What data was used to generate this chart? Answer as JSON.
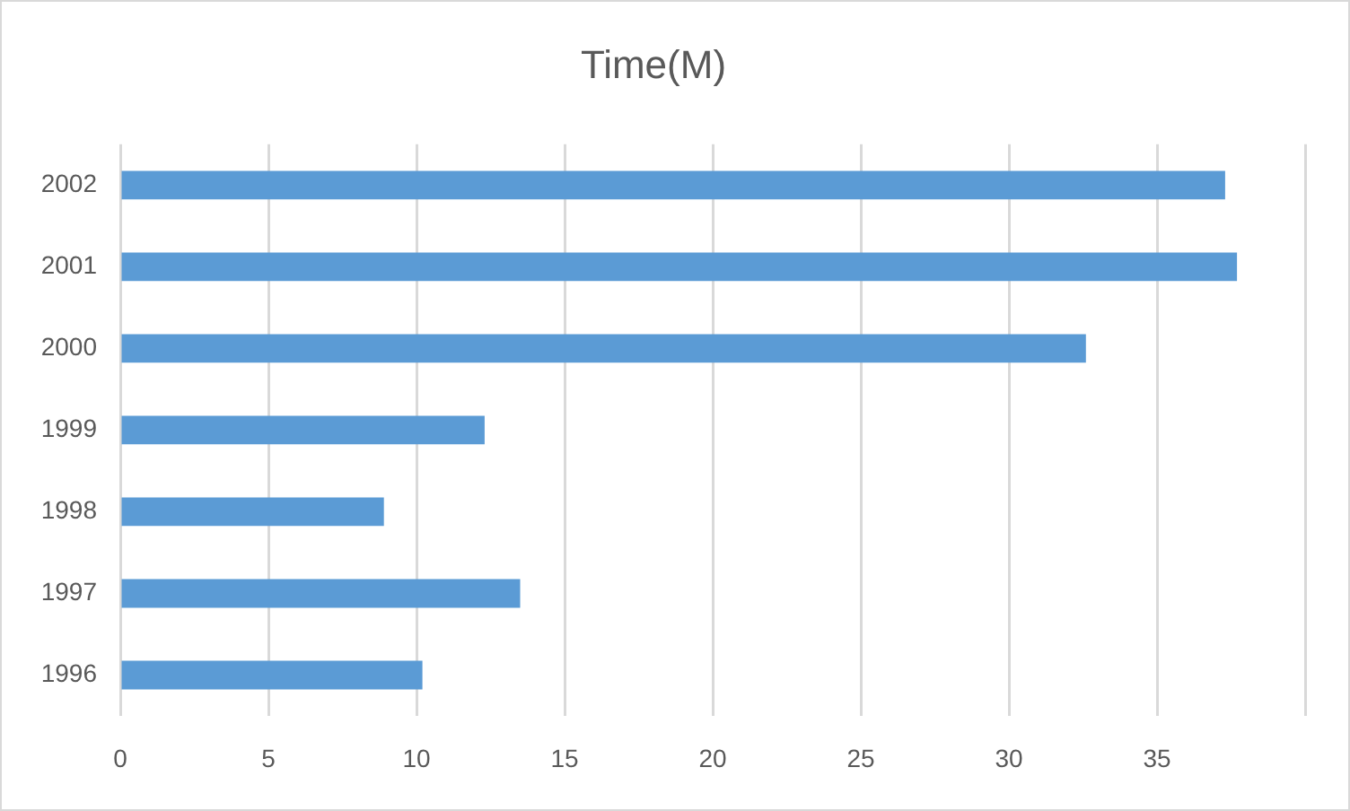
{
  "chart_data": {
    "type": "bar",
    "orientation": "horizontal",
    "title": "Time(M)",
    "categories": [
      "2002",
      "2001",
      "2000",
      "1999",
      "1998",
      "1997",
      "1996"
    ],
    "values": [
      37.3,
      37.7,
      32.6,
      12.3,
      8.9,
      13.5,
      10.2
    ],
    "color": "#5b9bd5",
    "xlim": [
      0,
      40
    ],
    "xticks": [
      0,
      5,
      10,
      15,
      20,
      25,
      30,
      35,
      {
        "value": 40,
        "label": null
      }
    ],
    "grid": "x",
    "legend": false
  }
}
